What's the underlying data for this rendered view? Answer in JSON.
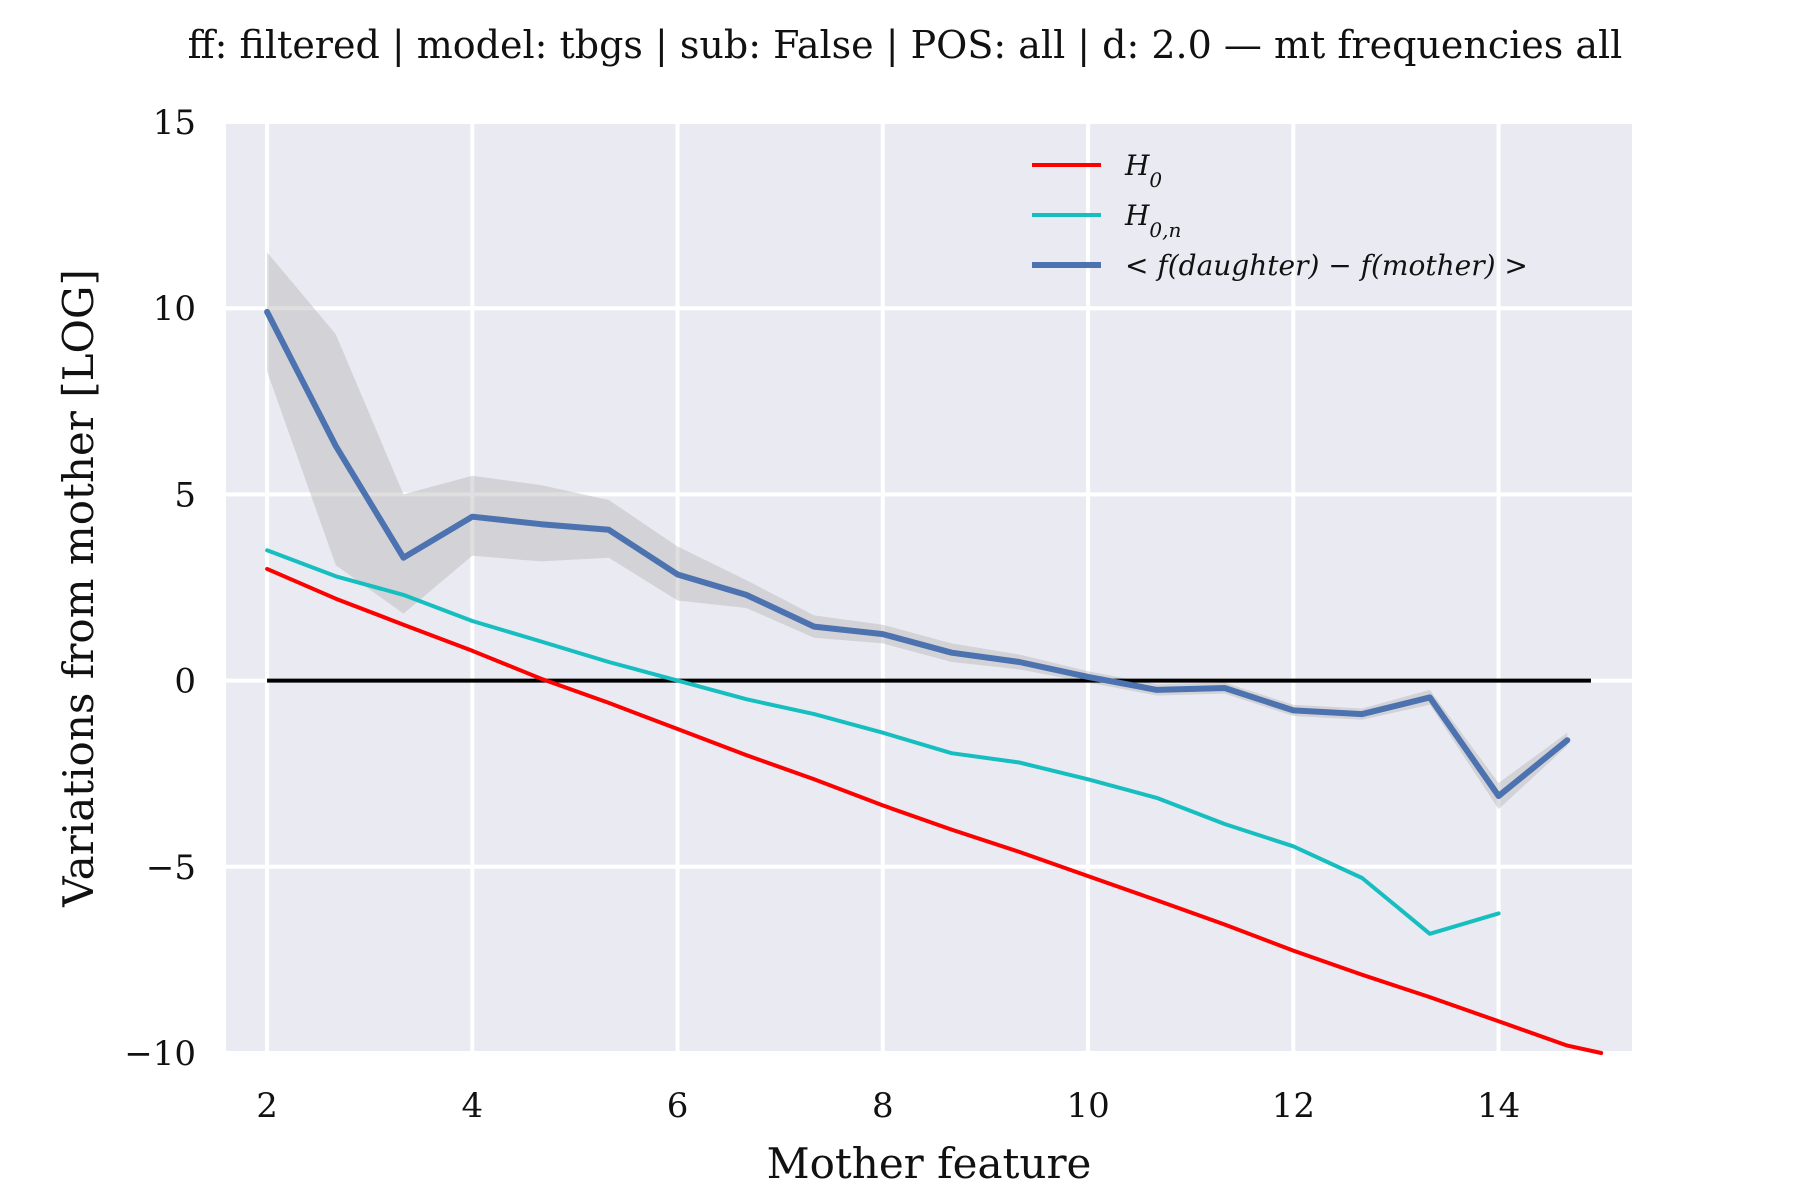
{
  "chart_data": {
    "type": "line",
    "title": "ff: filtered | model: tbgs | sub: False | POS: all | d: 2.0 — mt frequencies all",
    "xlabel": "Mother feature",
    "ylabel": "Variations from mother [LOG]",
    "xlim": [
      1.6,
      15.3
    ],
    "ylim": [
      -10,
      15
    ],
    "xticks": [
      2,
      4,
      6,
      8,
      10,
      12,
      14
    ],
    "yticks": [
      -10,
      -5,
      0,
      5,
      10,
      15
    ],
    "ytick_labels": [
      "−10",
      "−5",
      "0",
      "5",
      "10",
      "15"
    ],
    "grid": true,
    "legend_position": "top-right",
    "zero_line": {
      "y": 0,
      "x_range": [
        2.0,
        14.9
      ],
      "color": "#000000"
    },
    "series": [
      {
        "name": "H0",
        "label_main": "H",
        "label_sub": "0",
        "color": "#ff0000",
        "x": [
          2.0,
          2.67,
          3.33,
          4.0,
          4.67,
          5.33,
          6.0,
          6.67,
          7.33,
          8.0,
          8.67,
          9.33,
          10.0,
          10.67,
          11.33,
          12.0,
          12.67,
          13.33,
          14.0,
          14.67,
          15.0
        ],
        "y": [
          3.0,
          2.2,
          1.5,
          0.8,
          0.05,
          -0.6,
          -1.3,
          -2.0,
          -2.65,
          -3.35,
          -4.0,
          -4.6,
          -5.25,
          -5.9,
          -6.55,
          -7.25,
          -7.9,
          -8.5,
          -9.15,
          -9.8,
          -10.0
        ]
      },
      {
        "name": "H0,n",
        "label_main": "H",
        "label_sub": "0,n",
        "color": "#17bebf",
        "x": [
          2.0,
          2.67,
          3.33,
          4.0,
          4.67,
          5.33,
          6.0,
          6.67,
          7.33,
          8.0,
          8.67,
          9.33,
          10.0,
          10.67,
          11.33,
          12.0,
          12.67,
          13.33,
          14.0
        ],
        "y": [
          3.5,
          2.8,
          2.3,
          1.6,
          1.05,
          0.5,
          0.0,
          -0.5,
          -0.9,
          -1.4,
          -1.95,
          -2.2,
          -2.65,
          -3.15,
          -3.85,
          -4.45,
          -5.3,
          -6.8,
          -6.25
        ]
      },
      {
        "name": "< f(daughter) − f(mother) >",
        "label_main": "< f(daughter) − f(mother) >",
        "label_sub": "",
        "color": "#4c72b0",
        "band_color": "#b0b0b0",
        "x": [
          2.0,
          2.67,
          3.33,
          4.0,
          4.67,
          5.33,
          6.0,
          6.67,
          7.33,
          8.0,
          8.67,
          9.33,
          10.0,
          10.67,
          11.33,
          12.0,
          12.67,
          13.33,
          14.0,
          14.67
        ],
        "y": [
          9.9,
          6.3,
          3.3,
          4.4,
          4.2,
          4.05,
          2.85,
          2.3,
          1.45,
          1.25,
          0.75,
          0.5,
          0.1,
          -0.25,
          -0.2,
          -0.8,
          -0.9,
          -0.45,
          -3.1,
          -1.6
        ],
        "lower": [
          8.3,
          3.1,
          1.8,
          3.35,
          3.2,
          3.3,
          2.15,
          1.95,
          1.15,
          1.0,
          0.5,
          0.3,
          -0.05,
          -0.4,
          -0.35,
          -0.95,
          -1.05,
          -0.65,
          -3.45,
          -1.75
        ],
        "upper": [
          11.5,
          9.3,
          5.0,
          5.5,
          5.25,
          4.85,
          3.6,
          2.7,
          1.75,
          1.5,
          1.0,
          0.7,
          0.25,
          -0.1,
          -0.05,
          -0.65,
          -0.75,
          -0.25,
          -2.75,
          -1.4
        ]
      }
    ]
  }
}
